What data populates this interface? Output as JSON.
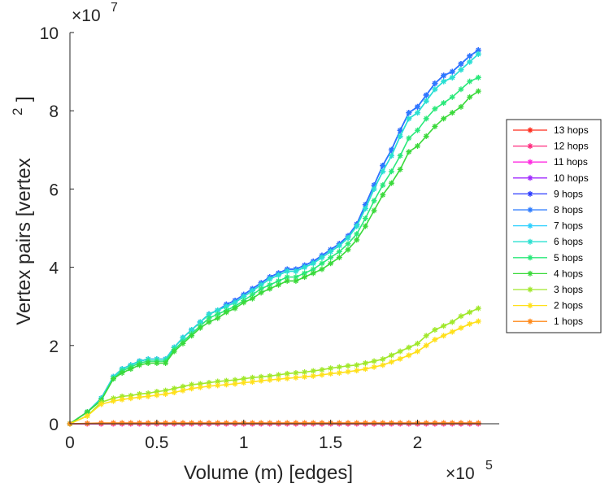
{
  "chart_data": {
    "type": "line",
    "title": "",
    "xlabel": "Volume (m) [edges]",
    "ylabel": "Vertex pairs [vertex",
    "ylabel_superscript": "2",
    "ylabel_close": "]",
    "x_multiplier_base": "×10",
    "x_multiplier_exp": "5",
    "y_multiplier_base": "×10",
    "y_multiplier_exp": "7",
    "xlim": [
      0,
      2.47
    ],
    "ylim": [
      0,
      10
    ],
    "xticks": [
      0,
      0.5,
      1,
      1.5,
      2
    ],
    "xtick_labels": [
      "0",
      "0.5",
      "1",
      "1.5",
      "2"
    ],
    "yticks": [
      0,
      2,
      4,
      6,
      8,
      10
    ],
    "ytick_labels": [
      "0",
      "2",
      "4",
      "6",
      "8",
      "10"
    ],
    "legend_position": "right",
    "x": [
      0,
      0.1,
      0.18,
      0.25,
      0.3,
      0.35,
      0.4,
      0.45,
      0.5,
      0.55,
      0.6,
      0.65,
      0.7,
      0.75,
      0.8,
      0.85,
      0.9,
      0.95,
      1.0,
      1.05,
      1.1,
      1.15,
      1.2,
      1.25,
      1.3,
      1.35,
      1.4,
      1.45,
      1.5,
      1.55,
      1.6,
      1.65,
      1.7,
      1.75,
      1.8,
      1.85,
      1.9,
      1.95,
      2.0,
      2.05,
      2.1,
      2.15,
      2.2,
      2.25,
      2.3,
      2.35
    ],
    "series": [
      {
        "name": "13 hops",
        "color": "#ff2a1a",
        "values": [
          0,
          0,
          0,
          0,
          0,
          0,
          0,
          0,
          0,
          0,
          0,
          0,
          0,
          0,
          0,
          0,
          0,
          0,
          0,
          0,
          0,
          0,
          0,
          0,
          0,
          0,
          0,
          0,
          0,
          0,
          0,
          0,
          0,
          0,
          0,
          0,
          0,
          0,
          0,
          0,
          0,
          0,
          0,
          0,
          0,
          0
        ]
      },
      {
        "name": "12 hops",
        "color": "#ff2a7e",
        "values": [
          0,
          0,
          0,
          0,
          0,
          0,
          0,
          0,
          0,
          0,
          0,
          0,
          0,
          0,
          0,
          0,
          0,
          0,
          0,
          0,
          0,
          0,
          0,
          0,
          0,
          0,
          0,
          0,
          0,
          0,
          0,
          0,
          0,
          0,
          0,
          0,
          0,
          0,
          0,
          0,
          0,
          0,
          0,
          0,
          0,
          0
        ]
      },
      {
        "name": "11 hops",
        "color": "#ff2ae0",
        "values": [
          0,
          0,
          0,
          0,
          0,
          0,
          0,
          0,
          0,
          0,
          0,
          0,
          0,
          0,
          0,
          0,
          0,
          0,
          0,
          0,
          0,
          0,
          0,
          0,
          0,
          0,
          0,
          0,
          0,
          0,
          0,
          0,
          0,
          0,
          0,
          0,
          0,
          0,
          0,
          0,
          0,
          0,
          0,
          0,
          0,
          0
        ]
      },
      {
        "name": "10 hops",
        "color": "#a02aff",
        "values": [
          0,
          0.3,
          0.65,
          1.2,
          1.4,
          1.5,
          1.6,
          1.65,
          1.65,
          1.65,
          1.95,
          2.2,
          2.4,
          2.6,
          2.8,
          2.9,
          3.05,
          3.15,
          3.3,
          3.45,
          3.6,
          3.75,
          3.85,
          3.95,
          3.95,
          4.05,
          4.15,
          4.3,
          4.45,
          4.6,
          4.8,
          5.1,
          5.6,
          6.1,
          6.6,
          7.0,
          7.5,
          7.95,
          8.1,
          8.4,
          8.7,
          8.9,
          9.0,
          9.2,
          9.4,
          9.55
        ]
      },
      {
        "name": "9 hops",
        "color": "#2a3aff",
        "values": [
          0,
          0.3,
          0.65,
          1.2,
          1.4,
          1.5,
          1.6,
          1.65,
          1.65,
          1.65,
          1.95,
          2.2,
          2.4,
          2.6,
          2.8,
          2.9,
          3.05,
          3.15,
          3.3,
          3.45,
          3.6,
          3.75,
          3.85,
          3.95,
          3.95,
          4.05,
          4.15,
          4.3,
          4.45,
          4.6,
          4.8,
          5.1,
          5.6,
          6.1,
          6.6,
          7.0,
          7.5,
          7.95,
          8.1,
          8.4,
          8.7,
          8.9,
          9.0,
          9.2,
          9.4,
          9.55
        ]
      },
      {
        "name": "8 hops",
        "color": "#2a7aff",
        "values": [
          0,
          0.3,
          0.65,
          1.2,
          1.4,
          1.5,
          1.6,
          1.65,
          1.65,
          1.65,
          1.95,
          2.2,
          2.4,
          2.6,
          2.8,
          2.9,
          3.05,
          3.15,
          3.3,
          3.45,
          3.6,
          3.75,
          3.85,
          3.95,
          3.95,
          4.05,
          4.15,
          4.3,
          4.45,
          4.6,
          4.8,
          5.1,
          5.6,
          6.1,
          6.6,
          7.0,
          7.5,
          7.95,
          8.1,
          8.4,
          8.7,
          8.9,
          9.0,
          9.2,
          9.4,
          9.55
        ]
      },
      {
        "name": "7 hops",
        "color": "#2acfff",
        "values": [
          0,
          0.3,
          0.65,
          1.2,
          1.4,
          1.5,
          1.6,
          1.65,
          1.65,
          1.65,
          1.95,
          2.2,
          2.4,
          2.6,
          2.8,
          2.9,
          3.0,
          3.1,
          3.25,
          3.4,
          3.55,
          3.7,
          3.8,
          3.9,
          3.9,
          4.0,
          4.1,
          4.25,
          4.4,
          4.55,
          4.75,
          5.05,
          5.5,
          6.0,
          6.45,
          6.85,
          7.35,
          7.8,
          7.95,
          8.25,
          8.55,
          8.75,
          8.85,
          9.05,
          9.25,
          9.45
        ]
      },
      {
        "name": "6 hops",
        "color": "#2ae0d0",
        "values": [
          0,
          0.3,
          0.65,
          1.2,
          1.4,
          1.5,
          1.6,
          1.65,
          1.65,
          1.65,
          1.95,
          2.2,
          2.4,
          2.6,
          2.8,
          2.9,
          3.0,
          3.1,
          3.25,
          3.4,
          3.55,
          3.7,
          3.8,
          3.9,
          3.9,
          4.0,
          4.1,
          4.25,
          4.4,
          4.55,
          4.75,
          5.05,
          5.5,
          6.0,
          6.45,
          6.85,
          7.35,
          7.8,
          7.95,
          8.25,
          8.55,
          8.75,
          8.85,
          9.05,
          9.25,
          9.45
        ]
      },
      {
        "name": "5 hops",
        "color": "#2ae87a",
        "values": [
          0,
          0.3,
          0.6,
          1.15,
          1.35,
          1.45,
          1.55,
          1.6,
          1.6,
          1.6,
          1.9,
          2.1,
          2.3,
          2.5,
          2.7,
          2.8,
          2.9,
          3.0,
          3.15,
          3.3,
          3.45,
          3.55,
          3.65,
          3.75,
          3.75,
          3.85,
          3.95,
          4.1,
          4.25,
          4.4,
          4.6,
          4.85,
          5.25,
          5.7,
          6.1,
          6.45,
          6.85,
          7.3,
          7.5,
          7.8,
          8.05,
          8.2,
          8.35,
          8.55,
          8.75,
          8.85
        ]
      },
      {
        "name": "4 hops",
        "color": "#3ad93a",
        "values": [
          0,
          0.3,
          0.6,
          1.15,
          1.3,
          1.4,
          1.5,
          1.55,
          1.55,
          1.55,
          1.85,
          2.05,
          2.25,
          2.45,
          2.6,
          2.7,
          2.85,
          2.95,
          3.1,
          3.2,
          3.35,
          3.45,
          3.55,
          3.65,
          3.65,
          3.75,
          3.85,
          3.95,
          4.1,
          4.25,
          4.45,
          4.7,
          5.05,
          5.45,
          5.85,
          6.15,
          6.5,
          6.95,
          7.1,
          7.35,
          7.6,
          7.8,
          7.95,
          8.1,
          8.35,
          8.5
        ]
      },
      {
        "name": "3 hops",
        "color": "#a0e82a",
        "values": [
          0,
          0.2,
          0.55,
          0.65,
          0.7,
          0.72,
          0.76,
          0.78,
          0.82,
          0.85,
          0.9,
          0.95,
          1.0,
          1.02,
          1.05,
          1.08,
          1.1,
          1.12,
          1.15,
          1.18,
          1.2,
          1.22,
          1.25,
          1.28,
          1.3,
          1.32,
          1.35,
          1.38,
          1.42,
          1.45,
          1.48,
          1.5,
          1.55,
          1.6,
          1.65,
          1.75,
          1.85,
          1.95,
          2.05,
          2.25,
          2.4,
          2.5,
          2.6,
          2.75,
          2.85,
          2.95
        ]
      },
      {
        "name": "2 hops",
        "color": "#ffe01a",
        "values": [
          0,
          0.2,
          0.5,
          0.58,
          0.62,
          0.65,
          0.68,
          0.7,
          0.73,
          0.76,
          0.8,
          0.85,
          0.9,
          0.93,
          0.96,
          0.98,
          1.0,
          1.02,
          1.05,
          1.07,
          1.1,
          1.12,
          1.14,
          1.16,
          1.18,
          1.2,
          1.22,
          1.25,
          1.28,
          1.3,
          1.33,
          1.36,
          1.4,
          1.45,
          1.5,
          1.58,
          1.66,
          1.75,
          1.85,
          2.0,
          2.15,
          2.25,
          2.35,
          2.45,
          2.55,
          2.62
        ]
      },
      {
        "name": "1 hops",
        "color": "#ff8a1a",
        "values": [
          0,
          0.01,
          0.02,
          0.02,
          0.02,
          0.02,
          0.02,
          0.02,
          0.02,
          0.02,
          0.02,
          0.02,
          0.02,
          0.02,
          0.02,
          0.02,
          0.02,
          0.02,
          0.02,
          0.02,
          0.02,
          0.02,
          0.02,
          0.02,
          0.02,
          0.02,
          0.02,
          0.02,
          0.02,
          0.02,
          0.02,
          0.02,
          0.02,
          0.02,
          0.02,
          0.02,
          0.02,
          0.02,
          0.02,
          0.02,
          0.02,
          0.02,
          0.02,
          0.02,
          0.02,
          0.02
        ]
      }
    ]
  }
}
